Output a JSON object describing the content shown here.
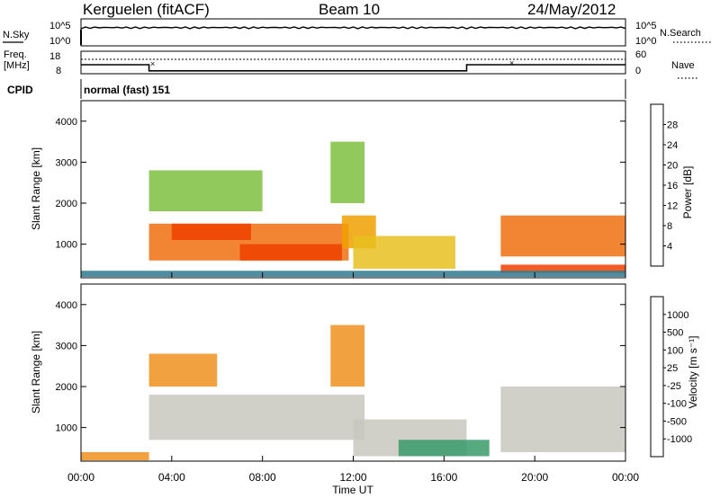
{
  "header": {
    "station": "Kerguelen (fitACF)",
    "beam": "Beam 10",
    "date": "24/May/2012"
  },
  "noise_panel": {
    "left_label": "N.Sky",
    "right_label": "N.Search",
    "tick_top": "10^5",
    "tick_bottom": "10^0"
  },
  "freq_panel": {
    "label_line1": "Freq.",
    "label_line2": "[MHz]",
    "tick_top": "18",
    "tick_bottom": "8",
    "right_tick_top": "60",
    "right_tick_bottom": "0",
    "right_label": "Nave",
    "freq_segments": [
      {
        "start": 0,
        "end": 3,
        "value": 12
      },
      {
        "start": 3,
        "end": 17,
        "value": 9.3
      },
      {
        "start": 17,
        "end": 24,
        "value": 12
      }
    ]
  },
  "cpid": {
    "label": "CPID",
    "text": "normal (fast) 151"
  },
  "x_axis": {
    "title": "Time UT",
    "ticks": [
      "00:00",
      "04:00",
      "08:00",
      "12:00",
      "16:00",
      "20:00",
      "00:00"
    ],
    "range_hours": [
      0,
      24
    ]
  },
  "power_panel": {
    "ylabel": "Slant Range [km]",
    "yticks": [
      "1000",
      "2000",
      "3000",
      "4000"
    ],
    "ylim": [
      180,
      4500
    ],
    "colorbar": {
      "label": "Power [dB]",
      "ticks": [
        "4",
        "8",
        "12",
        "16",
        "20",
        "24",
        "28"
      ],
      "colors": [
        "#0000ff",
        "#2244cc",
        "#2e7a8f",
        "#3f9f5e",
        "#7fbf3f",
        "#e8c020",
        "#f0a000",
        "#f07010",
        "#f04000",
        "#ff0000"
      ]
    }
  },
  "velocity_panel": {
    "ylabel": "Slant Range [km]",
    "yticks": [
      "1000",
      "2000",
      "3000",
      "4000"
    ],
    "ylim": [
      180,
      4500
    ],
    "colorbar": {
      "label": "Velocity [m s⁻¹]",
      "ticks": [
        "1000",
        "500",
        "100",
        "25",
        "-25",
        "-100",
        "-500",
        "-1000"
      ],
      "colors": [
        "#2020c0",
        "#2e6fb0",
        "#3a9a6a",
        "#5fcf3f",
        "#c8c8c0",
        "#c8c8c0",
        "#f0c040",
        "#f09020",
        "#f05010",
        "#ff0000"
      ]
    }
  },
  "chart_data": [
    {
      "type": "heatmap",
      "title": "Beam 10",
      "xlabel": "Time UT",
      "ylabel": "Slant Range [km]",
      "xlim": [
        0,
        24
      ],
      "ylim": [
        180,
        4500
      ],
      "colorbar_label": "Power [dB]",
      "regions": [
        {
          "t_start": 3.0,
          "t_end": 11.8,
          "r_low": 600,
          "r_high": 1500,
          "power_db": 24
        },
        {
          "t_start": 3.0,
          "t_end": 8.0,
          "r_low": 1800,
          "r_high": 2800,
          "power_db": 12
        },
        {
          "t_start": 4.0,
          "t_end": 7.5,
          "r_low": 1100,
          "r_high": 1500,
          "power_db": 28
        },
        {
          "t_start": 7.0,
          "t_end": 11.5,
          "r_low": 600,
          "r_high": 1000,
          "power_db": 28
        },
        {
          "t_start": 11.5,
          "t_end": 13.0,
          "r_low": 900,
          "r_high": 1700,
          "power_db": 20
        },
        {
          "t_start": 11.0,
          "t_end": 12.5,
          "r_low": 2000,
          "r_high": 3500,
          "power_db": 12
        },
        {
          "t_start": 12.0,
          "t_end": 16.5,
          "r_low": 400,
          "r_high": 1200,
          "power_db": 16
        },
        {
          "t_start": 18.5,
          "t_end": 24.0,
          "r_low": 700,
          "r_high": 1700,
          "power_db": 24
        },
        {
          "t_start": 18.5,
          "t_end": 24.0,
          "r_low": 300,
          "r_high": 500,
          "power_db": 28
        },
        {
          "t_start": 0.0,
          "t_end": 24.0,
          "r_low": 200,
          "r_high": 350,
          "power_db": 8
        }
      ]
    },
    {
      "type": "heatmap",
      "title": "Beam 10",
      "xlabel": "Time UT",
      "ylabel": "Slant Range [km]",
      "xlim": [
        0,
        24
      ],
      "ylim": [
        180,
        4500
      ],
      "colorbar_label": "Velocity [m s⁻¹]",
      "regions": [
        {
          "t_start": 3.0,
          "t_end": 12.5,
          "r_low": 700,
          "r_high": 1800,
          "velocity": 0
        },
        {
          "t_start": 3.0,
          "t_end": 6.0,
          "r_low": 2000,
          "r_high": 2800,
          "velocity": -100
        },
        {
          "t_start": 11.0,
          "t_end": 12.5,
          "r_low": 2000,
          "r_high": 3500,
          "velocity": -100
        },
        {
          "t_start": 12.0,
          "t_end": 17.0,
          "r_low": 300,
          "r_high": 1200,
          "velocity": 0
        },
        {
          "t_start": 18.5,
          "t_end": 24.0,
          "r_low": 400,
          "r_high": 2000,
          "velocity": 0
        },
        {
          "t_start": 0.0,
          "t_end": 3.0,
          "r_low": 200,
          "r_high": 400,
          "velocity": -100
        },
        {
          "t_start": 14.0,
          "t_end": 18.0,
          "r_low": 300,
          "r_high": 700,
          "velocity": 100
        }
      ]
    }
  ]
}
